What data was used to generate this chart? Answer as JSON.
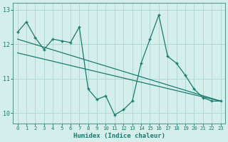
{
  "xlabel": "Humidex (Indice chaleur)",
  "background_color": "#d4eeeb",
  "grid_color": "#b0d8d4",
  "line_color": "#1a7a6e",
  "xlim": [
    -0.5,
    23.5
  ],
  "ylim": [
    9.7,
    13.2
  ],
  "yticks": [
    10,
    11,
    12,
    13
  ],
  "xticks": [
    0,
    1,
    2,
    3,
    4,
    5,
    6,
    7,
    8,
    9,
    10,
    11,
    12,
    13,
    14,
    15,
    16,
    17,
    18,
    19,
    20,
    21,
    22,
    23
  ],
  "x": [
    0,
    1,
    2,
    3,
    4,
    5,
    6,
    7,
    8,
    9,
    10,
    11,
    12,
    13,
    14,
    15,
    16,
    17,
    18,
    19,
    20,
    21,
    22,
    23
  ],
  "y_main": [
    12.35,
    12.65,
    12.2,
    11.85,
    12.15,
    12.1,
    12.05,
    12.5,
    10.7,
    10.4,
    10.5,
    9.95,
    10.1,
    10.35,
    11.45,
    12.15,
    12.85,
    11.65,
    11.45,
    11.1,
    10.7,
    10.45,
    10.35,
    10.35
  ],
  "trend1_x": [
    0,
    23
  ],
  "trend1_y": [
    12.15,
    10.35
  ],
  "trend2_x": [
    0,
    23
  ],
  "trend2_y": [
    11.75,
    10.35
  ]
}
